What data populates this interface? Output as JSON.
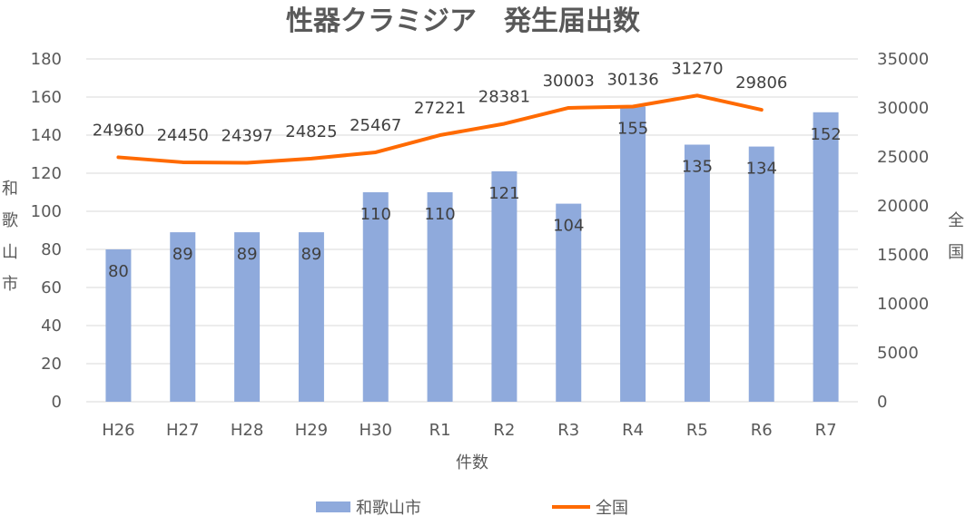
{
  "chart_data": {
    "type": "bar+line",
    "title": "性器クラミジア　発生届出数",
    "categories": [
      "H26",
      "H27",
      "H28",
      "H29",
      "H30",
      "R1",
      "R2",
      "R3",
      "R4",
      "R5",
      "R6",
      "R7"
    ],
    "xlabel": "件数",
    "ylabel_left": "和歌山市",
    "ylabel_right": "全国",
    "ylim_left": [
      0,
      180
    ],
    "ylim_right": [
      0,
      35000
    ],
    "left_ticks": [
      "0",
      "20",
      "40",
      "60",
      "80",
      "100",
      "120",
      "140",
      "160",
      "180"
    ],
    "right_ticks": [
      "0",
      "5000",
      "10000",
      "15000",
      "20000",
      "25000",
      "30000",
      "35000"
    ],
    "grid": true,
    "legend_position": "bottom",
    "series": [
      {
        "name": "和歌山市",
        "type": "bar",
        "axis": "left",
        "color": "#8faadc",
        "values": [
          80,
          89,
          89,
          89,
          110,
          110,
          121,
          104,
          155,
          135,
          134,
          152
        ]
      },
      {
        "name": "全国",
        "type": "line",
        "axis": "right",
        "color": "#ff6a00",
        "values": [
          24960,
          24450,
          24397,
          24825,
          25467,
          27221,
          28381,
          30003,
          30136,
          31270,
          29806,
          null
        ]
      }
    ]
  }
}
